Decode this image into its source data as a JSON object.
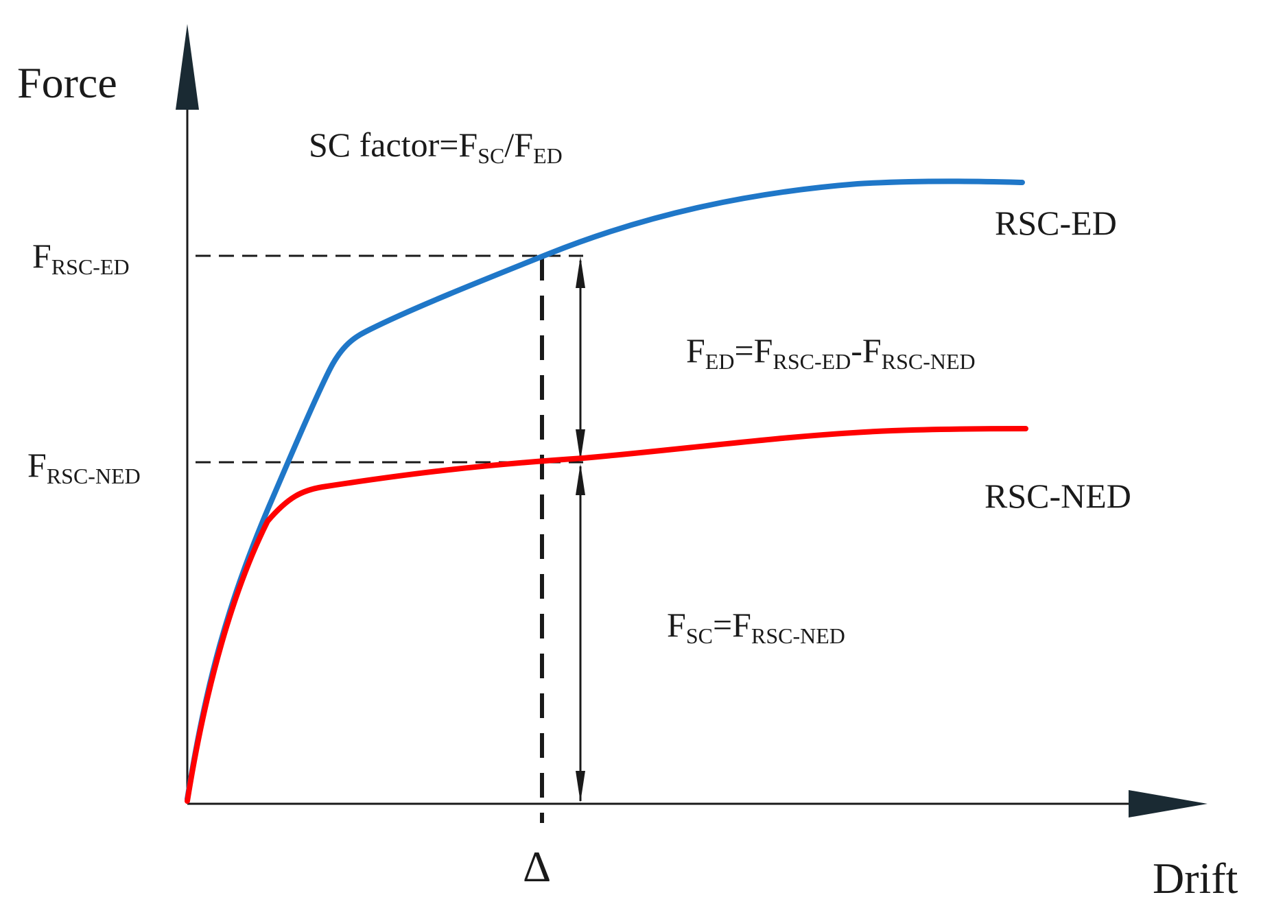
{
  "axes": {
    "y_label": "Force",
    "x_label": "Drift",
    "x_marker": "Δ"
  },
  "y_ticks": {
    "ed": {
      "main": "F",
      "sub": "RSC-ED"
    },
    "ned": {
      "main": "F",
      "sub": "RSC-NED"
    }
  },
  "curves": {
    "ed": {
      "label": "RSC-ED",
      "color": "#1f77c8"
    },
    "ned": {
      "label": "RSC-NED",
      "color": "#ff0000"
    }
  },
  "formulas": {
    "sc_factor": {
      "prefix": "SC factor=F",
      "sub1": "SC",
      "mid": "/F",
      "sub2": "ED"
    },
    "f_ed": {
      "m1": "F",
      "s1": "ED",
      "m2": "=F",
      "s2": "RSC-ED",
      "m3": "-F",
      "s3": "RSC-NED"
    },
    "f_sc": {
      "m1": "F",
      "s1": "SC",
      "m2": "=F",
      "s2": "RSC-NED"
    }
  },
  "colors": {
    "axis": "#1a1a1a",
    "ed_curve": "#1f77c8",
    "ned_curve": "#ff0000"
  }
}
